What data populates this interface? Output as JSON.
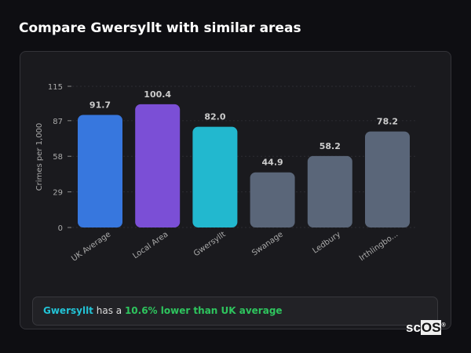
{
  "header": {
    "title": "Compare Gwersyllt with similar areas"
  },
  "chart_data": {
    "type": "bar",
    "title": "",
    "xlabel": "",
    "ylabel": "Crimes per 1,000",
    "ylim": [
      0,
      115
    ],
    "yticks": [
      0,
      29,
      58,
      87,
      115
    ],
    "grid": true,
    "categories": [
      "UK Average",
      "Local Area",
      "Gwersyllt",
      "Swanage",
      "Ledbury",
      "Irthlingbo..."
    ],
    "values": [
      91.7,
      100.4,
      82.0,
      44.9,
      58.2,
      78.2
    ],
    "labels": [
      "91.7",
      "100.4",
      "82.0",
      "44.9",
      "58.2",
      "78.2"
    ],
    "colors": [
      "#3777de",
      "#7b4fd6",
      "#22b8cf",
      "#5a6679",
      "#5a6679",
      "#5a6679"
    ]
  },
  "summary": {
    "area": "Gwersyllt",
    "middle": " has a ",
    "highlight": "10.6% lower than UK average"
  },
  "logo": {
    "text": "scOS"
  }
}
